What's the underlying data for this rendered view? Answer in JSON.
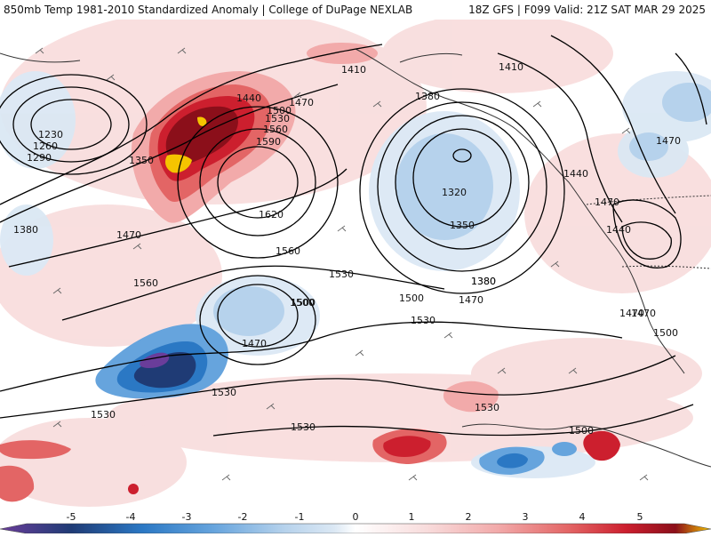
{
  "title_left": "850mb Temp 1981-2010 Standardized Anomaly | College of DuPage NEXLAB",
  "title_right": "18Z GFS | F099 Valid: 21Z SAT MAR 29 2025",
  "colorbar": {
    "ticks": [
      "-5",
      "-4",
      "-3",
      "-2",
      "-1",
      "0",
      "1",
      "2",
      "3",
      "4",
      "5"
    ],
    "colors": [
      "#6a3d9a",
      "#1f3b75",
      "#2b78c4",
      "#66a4dd",
      "#b6d2ec",
      "#dbe8f4",
      "#ffffff",
      "#f8dcdc",
      "#f2aaaa",
      "#e36565",
      "#cc1f2e",
      "#8b0f1a",
      "#f5c400"
    ]
  },
  "contour_labels": [
    {
      "text": "1230"
    },
    {
      "text": "1260"
    },
    {
      "text": "1290"
    },
    {
      "text": "1350"
    },
    {
      "text": "1380"
    },
    {
      "text": "1470"
    },
    {
      "text": "1440"
    },
    {
      "text": "1500"
    },
    {
      "text": "1530"
    },
    {
      "text": "1560"
    },
    {
      "text": "1590"
    },
    {
      "text": "1470"
    },
    {
      "text": "1620"
    },
    {
      "text": "1560"
    },
    {
      "text": "1530"
    },
    {
      "text": "1410"
    },
    {
      "text": "1380"
    },
    {
      "text": "1410"
    },
    {
      "text": "1320"
    },
    {
      "text": "1350"
    },
    {
      "text": "1440"
    },
    {
      "text": "1470"
    },
    {
      "text": "1440"
    },
    {
      "text": "1380"
    },
    {
      "text": "1500"
    },
    {
      "text": "1470"
    },
    {
      "text": "1530"
    },
    {
      "text": "1470"
    },
    {
      "text": "1500"
    },
    {
      "text": "1560"
    },
    {
      "text": "1500"
    },
    {
      "text": "1470"
    },
    {
      "text": "1530"
    },
    {
      "text": "1530"
    },
    {
      "text": "1530"
    },
    {
      "text": "1530"
    },
    {
      "text": "1500"
    },
    {
      "text": "1470"
    },
    {
      "text": "1500"
    },
    {
      "text": "1380"
    },
    {
      "text": "1470"
    }
  ]
}
